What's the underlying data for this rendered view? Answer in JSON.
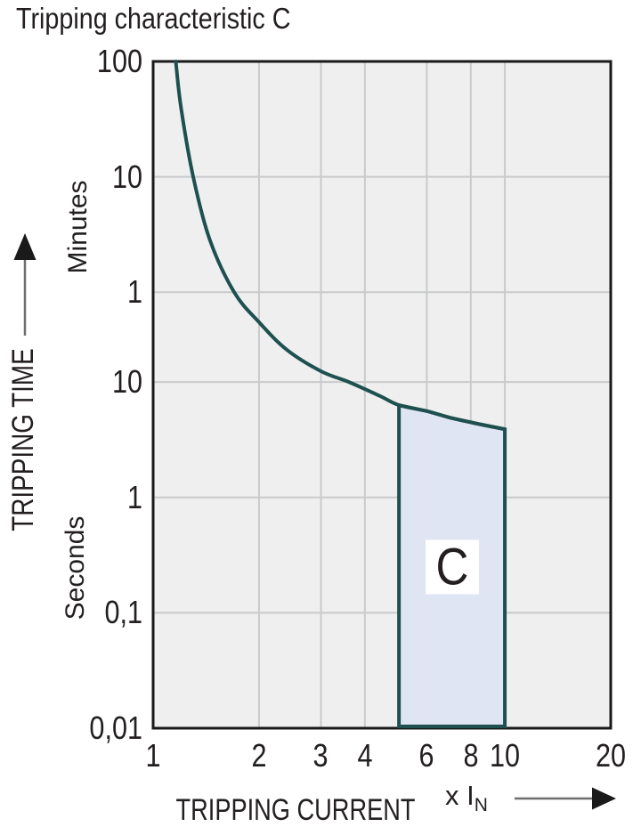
{
  "page": {
    "title": "Tripping characteristic C"
  },
  "chart_data": {
    "type": "line",
    "title": "Tripping characteristic C",
    "x_axis": {
      "label": "TRIPPING CURRENT",
      "unit_prefix": "x I",
      "unit_subscript": "N",
      "scale": "log",
      "range": [
        1,
        20
      ],
      "tick_labels": [
        "1",
        "2",
        "3",
        "4",
        "6",
        "8",
        "10",
        "20"
      ],
      "tick_values": [
        1,
        2,
        3,
        4,
        6,
        8,
        10,
        20
      ],
      "grid_values": [
        2,
        3,
        4,
        6,
        8,
        10
      ]
    },
    "y_axis": {
      "label": "TRIPPING TIME",
      "upper_unit": "Minutes",
      "lower_unit": "Seconds",
      "scale": "log",
      "range_seconds": [
        0.01,
        6000
      ],
      "ticks": [
        {
          "label": "100",
          "seconds": 6000
        },
        {
          "label": "10",
          "seconds": 600
        },
        {
          "label": "1",
          "seconds": 60
        },
        {
          "label": "10",
          "seconds": 10
        },
        {
          "label": "1",
          "seconds": 1
        },
        {
          "label": "0,1",
          "seconds": 0.1
        },
        {
          "label": "0,01",
          "seconds": 0.01
        }
      ],
      "grid_seconds": [
        600,
        60,
        10,
        1,
        0.1
      ]
    },
    "series": [
      {
        "name": "C tripping characteristic curve",
        "points_x_times_in": [
          1.16,
          1.2,
          1.3,
          1.45,
          1.7,
          2.0,
          2.4,
          3.0,
          3.6,
          4.4,
          5.0,
          6.0,
          7.0,
          8.5,
          10.0
        ],
        "points_seconds": [
          6000,
          2400,
          600,
          170,
          60,
          33,
          19,
          12.4,
          10,
          7.6,
          6.3,
          5.6,
          4.9,
          4.3,
          3.9
        ]
      }
    ],
    "region": {
      "label": "C",
      "x_range": [
        5,
        10
      ],
      "top_follows_curve": true,
      "bottom_seconds": 0.01
    },
    "colors": {
      "curve": "#1e5050",
      "region_fill": "#dfe5f3",
      "plot_background": "#efefef",
      "gridline": "#c9cacc",
      "border": "#191919",
      "text": "#231f20",
      "arrow_line": "#6d6e70"
    }
  }
}
